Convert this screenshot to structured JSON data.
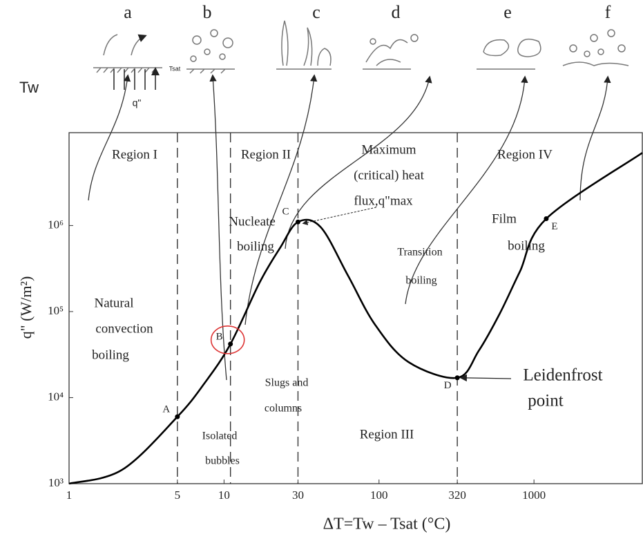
{
  "chart_data": {
    "type": "line",
    "x_label": "ΔT=Tw – Tsat (°C)",
    "y_label": "q\" (W/m²)",
    "xscale": "log",
    "yscale": "log",
    "xlim": [
      1,
      5000
    ],
    "ylim": [
      1000,
      12000000
    ],
    "xticks": [
      1,
      5,
      10,
      30,
      100,
      320,
      1000
    ],
    "yticks": [
      {
        "value": 1000,
        "label": "10³"
      },
      {
        "value": 10000,
        "label": "10⁴"
      },
      {
        "value": 100000,
        "label": "10⁵"
      },
      {
        "value": 1000000,
        "label": "10⁶"
      }
    ],
    "series": [
      {
        "color": "#000000",
        "x": [
          1,
          2.2,
          5,
          7.5,
          11,
          17,
          23,
          30,
          42,
          63,
          94,
          155,
          320,
          440,
          600,
          810,
          1200,
          5000
        ],
        "values": [
          1000,
          1450,
          6000,
          14800,
          42000,
          219000,
          550000,
          1100000,
          960000,
          263000,
          71000,
          25900,
          17000,
          35000,
          94000,
          290000,
          1200000,
          7000000
        ]
      }
    ],
    "points": [
      {
        "label": "A",
        "x": 5,
        "y": 6000
      },
      {
        "label": "B",
        "x": 11,
        "y": 42000
      },
      {
        "label": "C",
        "x": 30,
        "y": 1100000
      },
      {
        "label": "D",
        "x": 320,
        "y": 17000
      },
      {
        "label": "E",
        "x": 1200,
        "y": 1200000
      }
    ],
    "boundaries": [
      5,
      11,
      30,
      320
    ],
    "annotations": [
      "Region I",
      "Region II",
      "Maximum",
      "(critical) heat",
      "flux,q\"max",
      "Region IV",
      "Nucleate",
      "boiling",
      "Natural",
      "convection",
      "boiling",
      "Transition",
      "boiling",
      "Film",
      "boiling",
      "Slugs and",
      "columns",
      "Isolated",
      "bubbles",
      "Region III",
      "Leidenfrost",
      "point"
    ],
    "stage_labels": [
      "a",
      "b",
      "c",
      "d",
      "e",
      "f"
    ],
    "sketch_labels": [
      "Tw",
      "q\"",
      "Tsat"
    ]
  }
}
